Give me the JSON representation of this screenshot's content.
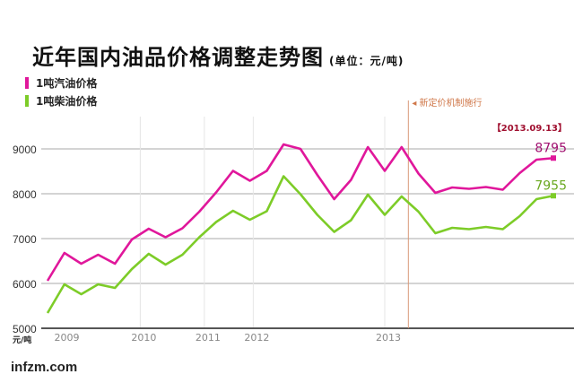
{
  "chart_data": {
    "type": "line",
    "title": "近年国内油品价格调整走势图",
    "unit": "(单位：元/吨)",
    "ylabel": "元/吨",
    "ylim": [
      5000,
      9500
    ],
    "yticks": [
      "5000",
      "6000",
      "7000",
      "8000",
      "9000"
    ],
    "year_ticks": [
      {
        "label": "2009",
        "pos": 0.4
      },
      {
        "label": "2010",
        "pos": 5.5
      },
      {
        "label": "2011",
        "pos": 9.3
      },
      {
        "label": "2012",
        "pos": 12.2
      },
      {
        "label": "2013",
        "pos": 20
      }
    ],
    "annotation": {
      "label": "新定价机制施行",
      "pos": 21.4
    },
    "end_date": "【2013.09.13】",
    "series": [
      {
        "name": "1吨汽油价格",
        "color": "#e0179b",
        "end_label": "8795",
        "values": [
          6060,
          6680,
          6440,
          6640,
          6440,
          6980,
          7220,
          7030,
          7230,
          7600,
          8030,
          8510,
          8290,
          8510,
          9100,
          9000,
          8420,
          7880,
          8310,
          9040,
          8510,
          9040,
          8450,
          8020,
          8140,
          8110,
          8150,
          8090,
          8460,
          8760,
          8795
        ]
      },
      {
        "name": "1吨柴油价格",
        "color": "#7dcc28",
        "end_label": "7955",
        "values": [
          5340,
          5980,
          5760,
          5980,
          5900,
          6320,
          6660,
          6420,
          6640,
          7030,
          7370,
          7620,
          7420,
          7610,
          8390,
          7990,
          7530,
          7150,
          7410,
          7980,
          7530,
          7940,
          7600,
          7120,
          7240,
          7210,
          7260,
          7210,
          7500,
          7880,
          7955
        ]
      }
    ]
  },
  "brand": "infzm.com"
}
